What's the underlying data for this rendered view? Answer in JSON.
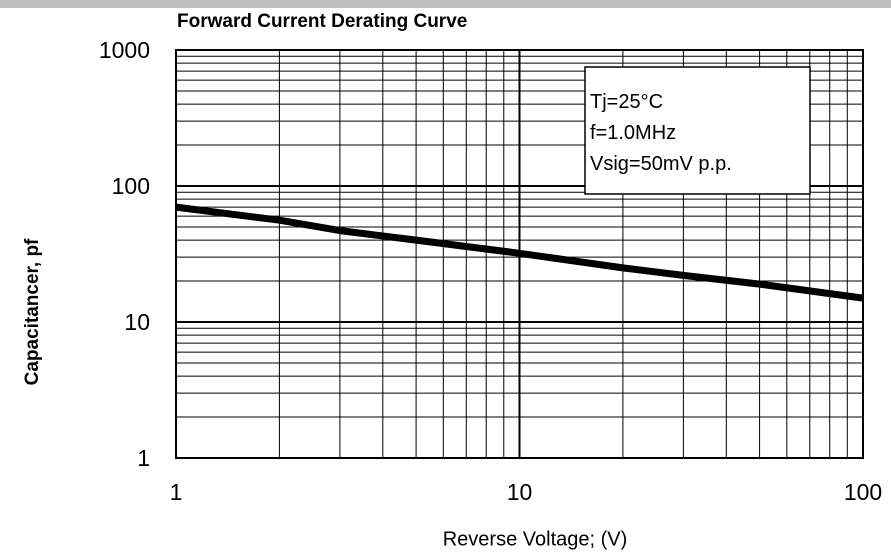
{
  "chart_data": {
    "type": "line",
    "title": "Forward Current Derating Curve",
    "xlabel": "Reverse Voltage; (V)",
    "ylabel": "Capacitancer, pf",
    "x_scale": "log",
    "y_scale": "log",
    "xlim": [
      1,
      100
    ],
    "ylim": [
      1,
      1000
    ],
    "x_ticks": [
      1,
      10,
      100
    ],
    "y_ticks": [
      1,
      10,
      100,
      1000
    ],
    "x_tick_labels": [
      "1",
      "10",
      "100"
    ],
    "y_tick_labels": [
      "1",
      "10",
      "100",
      "1000"
    ],
    "grid": true,
    "legend": "none",
    "annotation": {
      "location": "top-right",
      "lines": [
        "Tj=25°C",
        "f=1.0MHz",
        "Vsig=50mV p.p."
      ]
    },
    "series": [
      {
        "x": [
          1,
          2,
          3,
          5,
          10,
          20,
          30,
          50,
          100
        ],
        "y": [
          70,
          56,
          47,
          40,
          32,
          25,
          22,
          19,
          15
        ],
        "color": "#000000"
      }
    ]
  }
}
